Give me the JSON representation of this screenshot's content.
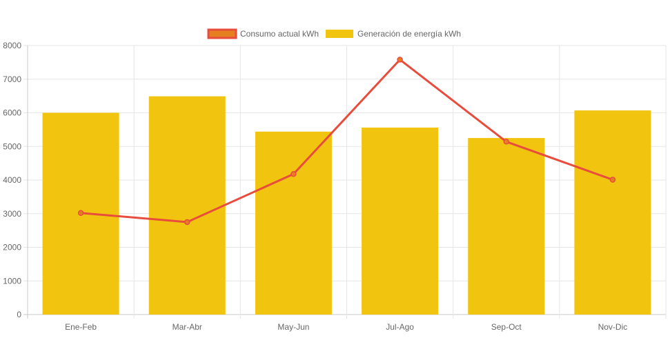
{
  "chart_data": {
    "type": "bar",
    "categories": [
      "Ene-Feb",
      "Mar-Abr",
      "May-Jun",
      "Jul-Ago",
      "Sep-Oct",
      "Nov-Dic"
    ],
    "ylim": [
      0,
      8000
    ],
    "yticks": [
      0,
      1000,
      2000,
      3000,
      4000,
      5000,
      6000,
      7000,
      8000
    ],
    "grid": true,
    "legend_position": "top-center",
    "series": [
      {
        "name": "Consumo actual kWh",
        "type": "line",
        "color": "#e74c3c",
        "values": [
          3020,
          2750,
          4180,
          7580,
          5140,
          4010
        ]
      },
      {
        "name": "Generación de energía kWh",
        "type": "bar",
        "color": "#f1c40f",
        "values": [
          6000,
          6490,
          5440,
          5560,
          5250,
          6070
        ]
      }
    ]
  }
}
